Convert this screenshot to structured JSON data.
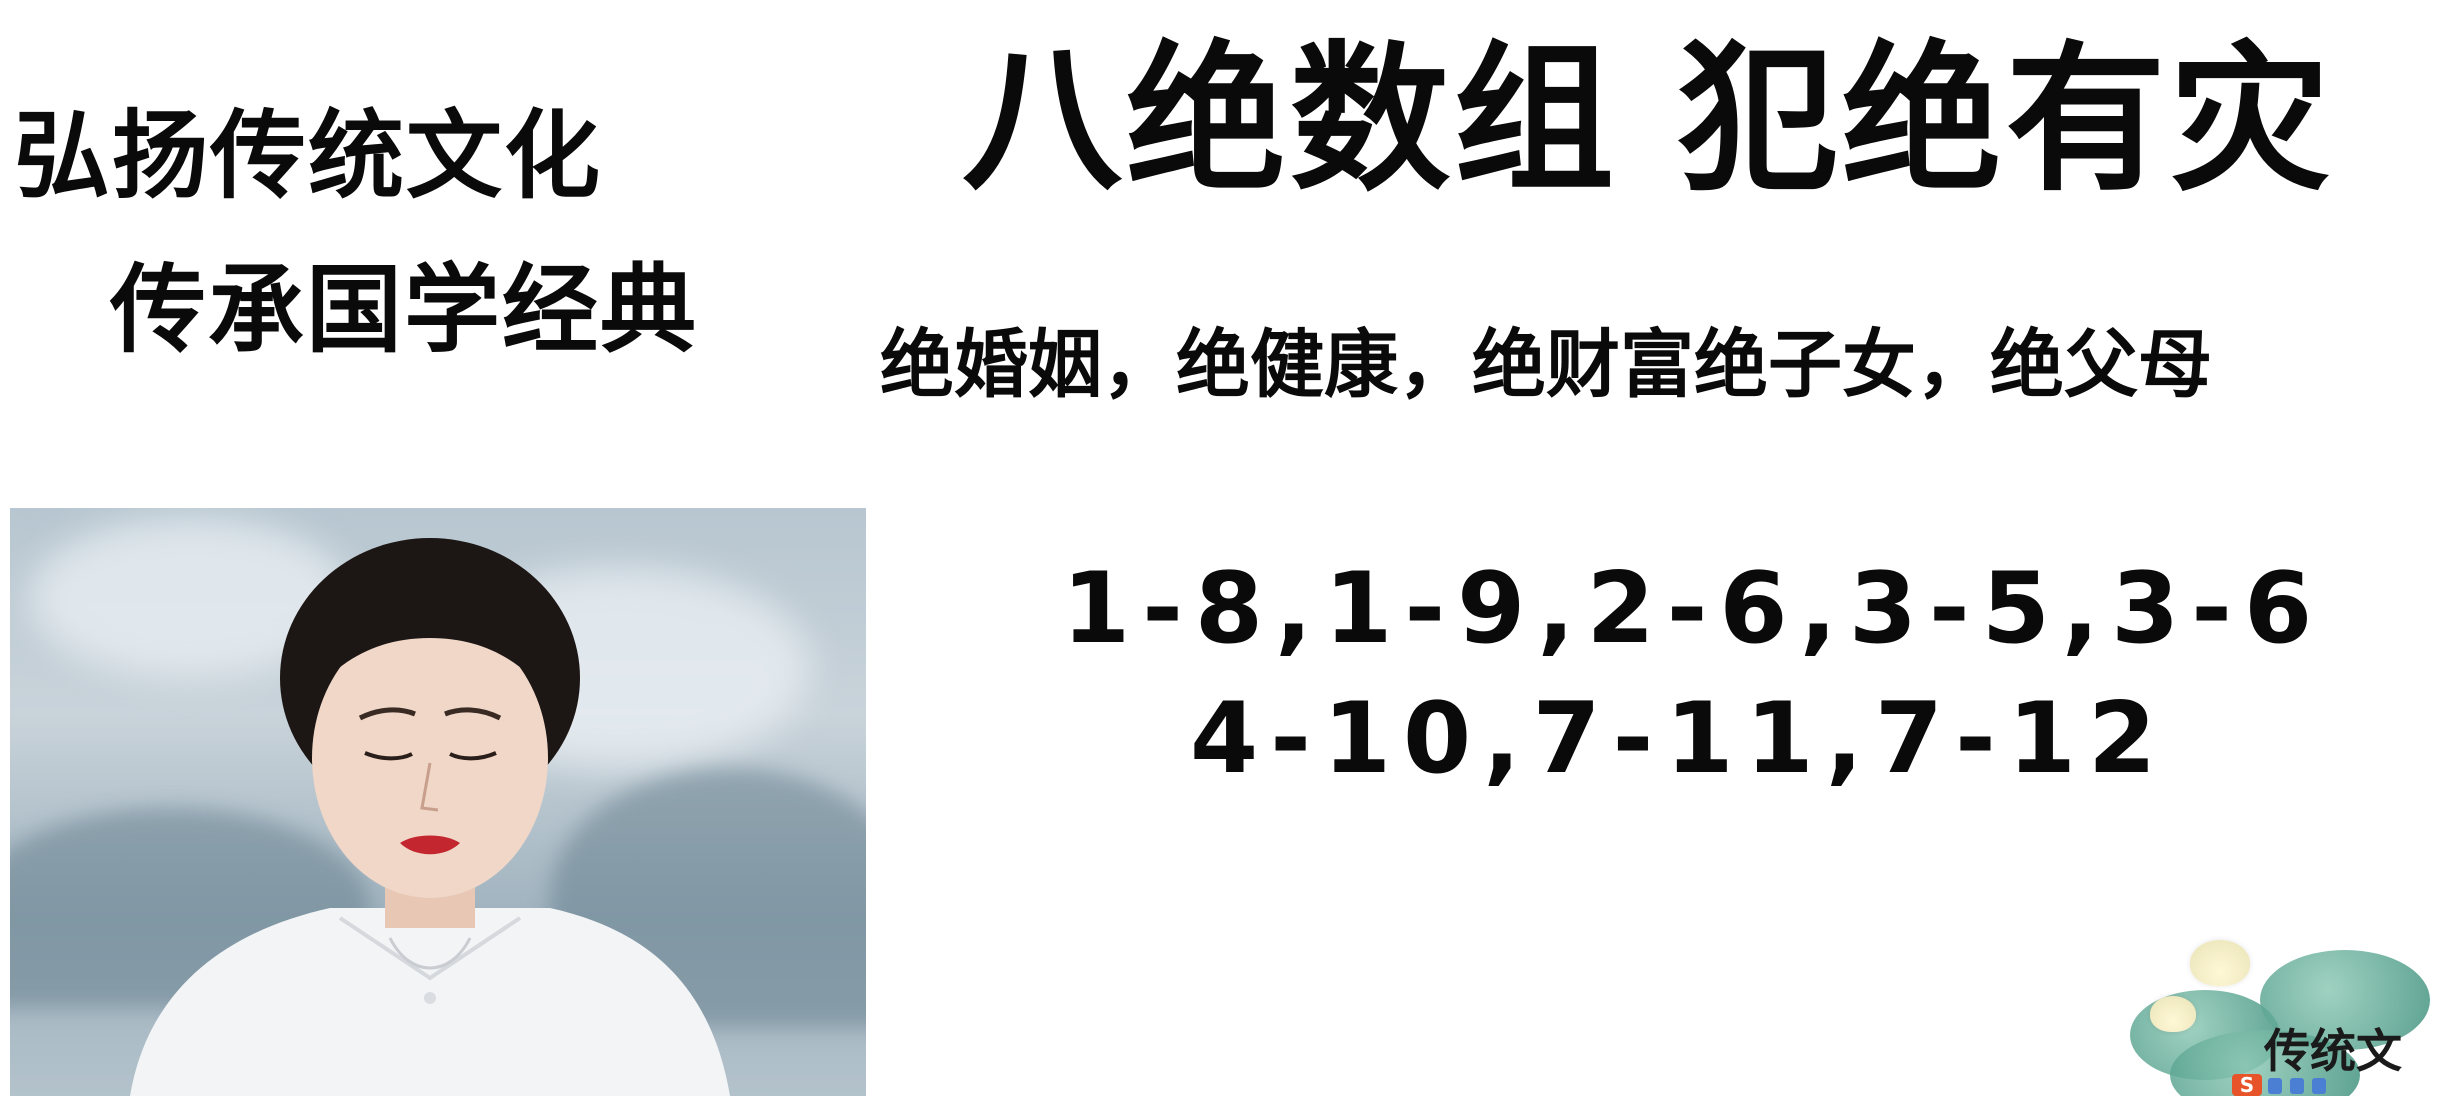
{
  "slogan": {
    "line1": "弘扬传统文化",
    "line2": "传承国学经典"
  },
  "title": "八绝数组 犯绝有灾",
  "subtitle": "绝婚姻，绝健康，绝财富绝子女，绝父母",
  "number_groups": {
    "line1": "1-8,1-9,2-6,3-5,3-6",
    "line2": "4-10,7-11,7-12"
  },
  "decoration": {
    "text": "传统文",
    "logo_letter": "S",
    "accent_color": "#e8542a",
    "leaf_color": "#3d8f7c"
  }
}
